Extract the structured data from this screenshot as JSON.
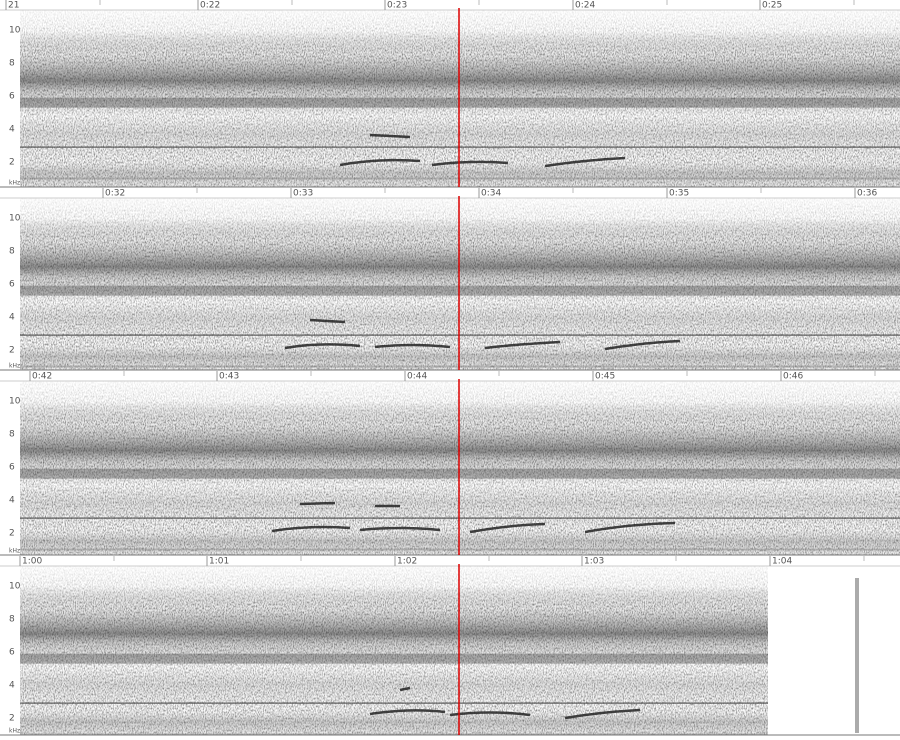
{
  "panels": [
    {
      "time_labels": [
        "21",
        "0:22",
        "0:23",
        "0:24",
        "0:25"
      ],
      "freq_labels": [
        "10",
        "8",
        "6",
        "4",
        "2"
      ],
      "unit": "kHz"
    },
    {
      "time_labels": [
        "0:32",
        "0:33",
        "0:34",
        "0:35",
        "0:36"
      ],
      "freq_labels": [
        "10",
        "8",
        "6",
        "4",
        "2"
      ],
      "unit": "kHz"
    },
    {
      "time_labels": [
        "0:42",
        "0:43",
        "0:44",
        "0:45",
        "0:46"
      ],
      "freq_labels": [
        "10",
        "8",
        "6",
        "4",
        "2"
      ],
      "unit": "kHz"
    },
    {
      "time_labels": [
        "1:00",
        "1:01",
        "1:02",
        "1:03",
        "1:04"
      ],
      "freq_labels": [
        "10",
        "8",
        "6",
        "4",
        "2"
      ],
      "unit": "kHz"
    }
  ]
}
